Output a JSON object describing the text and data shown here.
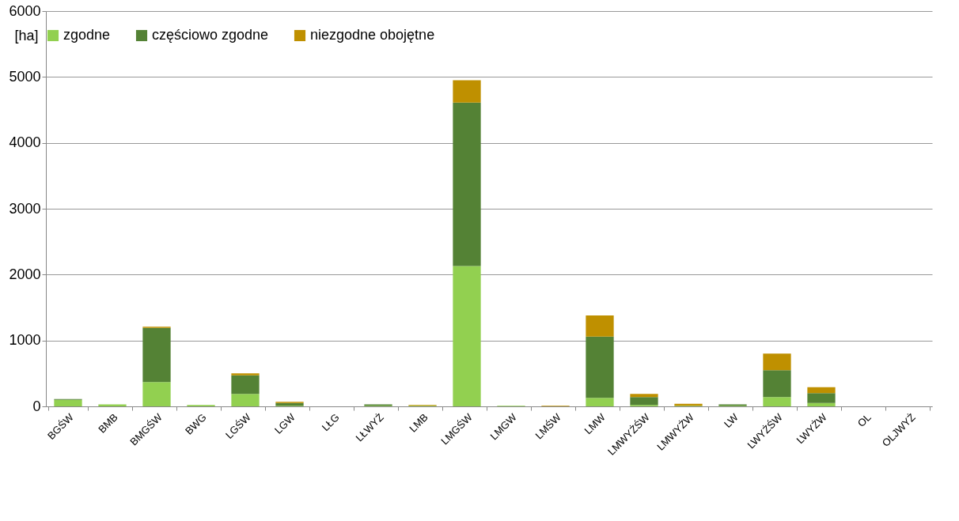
{
  "chart_data": {
    "type": "bar",
    "ylabel": "[ha]",
    "stacked": true,
    "grid": "y",
    "legend": "top",
    "categories": [
      "BGŚW",
      "BMB",
      "BMGŚW",
      "BWG",
      "LGŚW",
      "LGW",
      "LŁG",
      "LŁWYŻ",
      "LMB",
      "LMGŚW",
      "LMGW",
      "LMŚW",
      "LMW",
      "LMWYŻŚW",
      "LMWYŻW",
      "LW",
      "LWYŻŚW",
      "LWYŻW",
      "OL",
      "OLJWYŻ"
    ],
    "series": [
      {
        "name": "zgodne",
        "color": "#92d050",
        "values": [
          100,
          30,
          370,
          20,
          190,
          10,
          0,
          10,
          10,
          2130,
          10,
          0,
          130,
          20,
          10,
          10,
          140,
          50,
          0,
          0
        ]
      },
      {
        "name": "częściowo zgodne",
        "color": "#548235",
        "values": [
          10,
          0,
          820,
          0,
          280,
          40,
          0,
          20,
          0,
          2480,
          0,
          0,
          930,
          120,
          0,
          20,
          410,
          150,
          0,
          0
        ]
      },
      {
        "name": "niezgodne obojętne",
        "color": "#bf9000",
        "values": [
          0,
          0,
          20,
          0,
          30,
          20,
          0,
          0,
          10,
          340,
          0,
          10,
          320,
          50,
          30,
          0,
          250,
          90,
          0,
          0
        ]
      }
    ],
    "ylim": [
      0,
      6000
    ],
    "yticks": [
      0,
      1000,
      2000,
      3000,
      4000,
      5000,
      6000
    ]
  }
}
